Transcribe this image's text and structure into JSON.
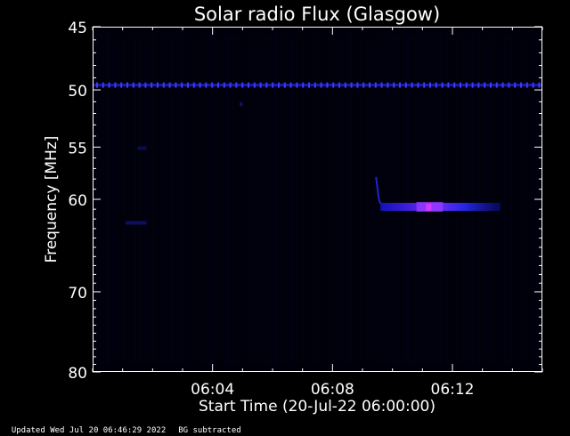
{
  "chart_data": {
    "type": "heatmap",
    "title": "Solar radio Flux (Glasgow)",
    "xlabel": "Start Time (20-Jul-22 06:00:00)",
    "ylabel": "Frequency [MHz]",
    "x_range_minutes": [
      0,
      15
    ],
    "y_range_mhz": [
      45,
      80
    ],
    "y_scale": "log",
    "x_ticks": [
      {
        "minute": 4,
        "label": "06:04"
      },
      {
        "minute": 8,
        "label": "06:08"
      },
      {
        "minute": 12,
        "label": "06:12"
      }
    ],
    "y_ticks": [
      {
        "mhz": 45,
        "label": "45"
      },
      {
        "mhz": 50,
        "label": "50"
      },
      {
        "mhz": 55,
        "label": "55"
      },
      {
        "mhz": 60,
        "label": "60"
      },
      {
        "mhz": 70,
        "label": "70"
      },
      {
        "mhz": 80,
        "label": "80"
      }
    ],
    "features": [
      {
        "name": "interference band",
        "freq_mhz": 49.6,
        "t_start": 0,
        "t_end": 15,
        "intensity": 0.65
      },
      {
        "name": "burst",
        "freq_mhz": 60.8,
        "t_start": 9.6,
        "t_end": 13.6,
        "intensity": 0.9
      },
      {
        "name": "short band",
        "freq_mhz": 62.4,
        "t_start": 1.1,
        "t_end": 1.8,
        "intensity": 0.45
      },
      {
        "name": "spot",
        "freq_mhz": 55.1,
        "t_start": 1.5,
        "t_end": 1.8,
        "intensity": 0.35
      },
      {
        "name": "spot",
        "freq_mhz": 51.2,
        "t_start": 4.9,
        "t_end": 5.0,
        "intensity": 0.5
      }
    ]
  },
  "footer": {
    "updated": "Updated Wed Jul 20 06:46:29 2022",
    "note": "BG subtracted"
  }
}
